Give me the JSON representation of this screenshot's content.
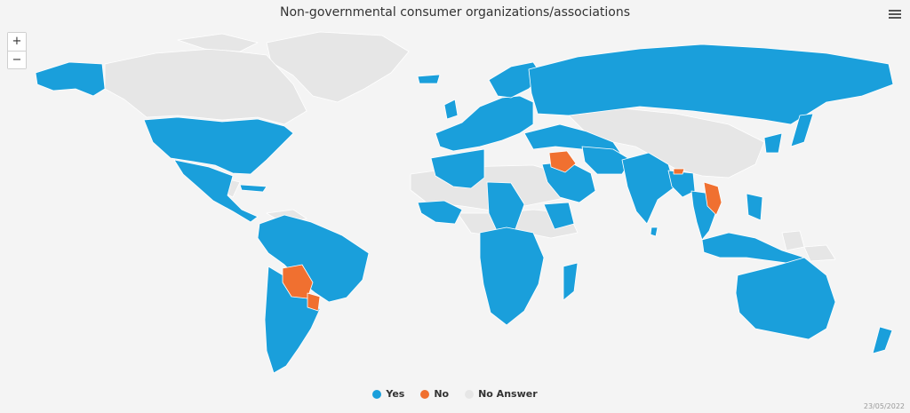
{
  "title": "Non-governmental consumer organizations/associations",
  "zoom": {
    "in_label": "+",
    "out_label": "−"
  },
  "legend": [
    {
      "label": "Yes",
      "color": "#1a9fdb"
    },
    {
      "label": "No",
      "color": "#f07030"
    },
    {
      "label": "No Answer",
      "color": "#e6e6e6"
    }
  ],
  "colors": {
    "yes": "#1a9fdb",
    "no": "#f07030",
    "no_answer": "#e6e6e6"
  },
  "date": "23/05/2022"
}
